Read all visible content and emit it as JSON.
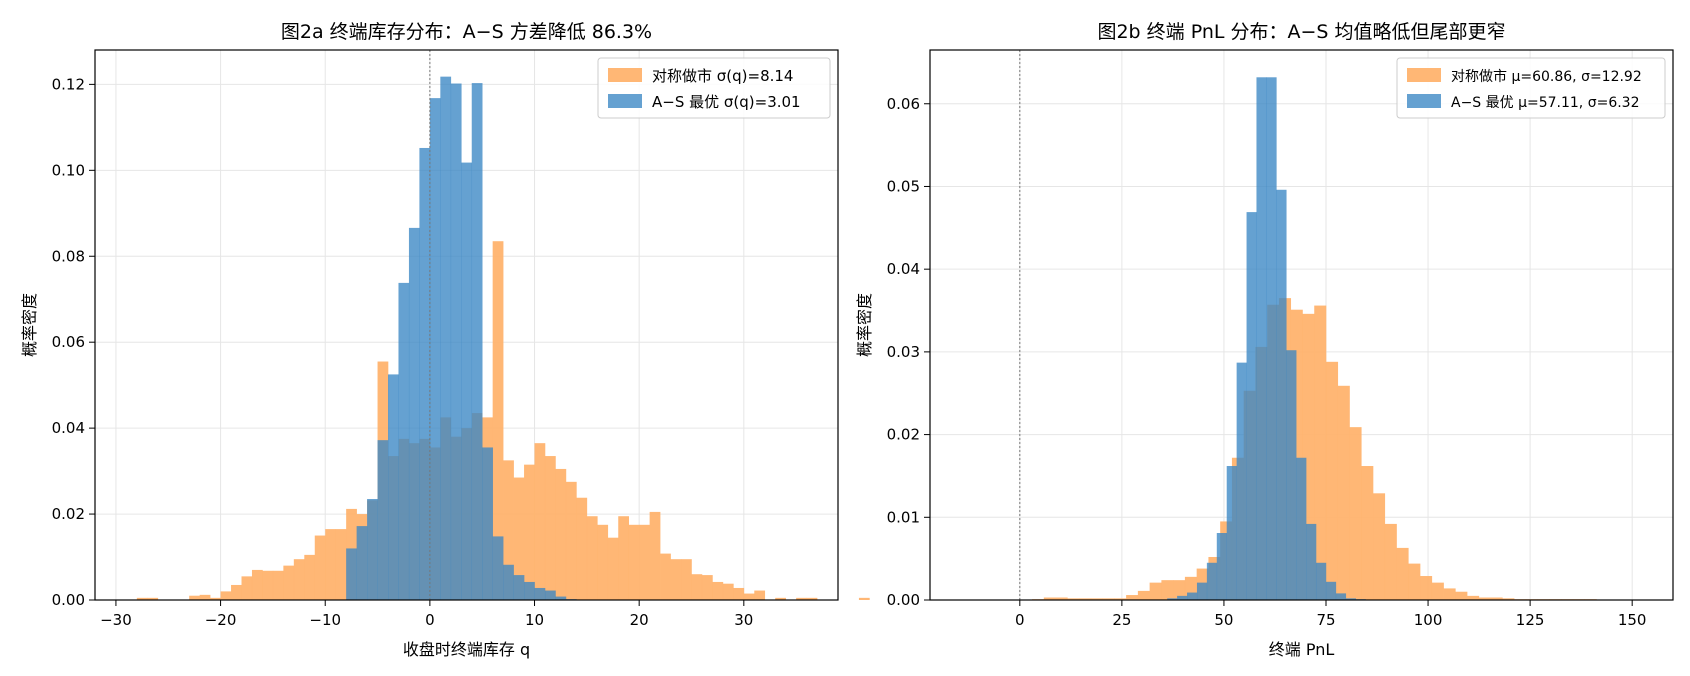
{
  "chart_data": [
    {
      "type": "histogram",
      "title": "图2a  终端库存分布：A−S 方差降低 86.3%",
      "xlabel": "收盘时终端库存 q",
      "ylabel": "概率密度",
      "xlim": [
        -32,
        39
      ],
      "ylim": [
        0,
        0.128
      ],
      "xticks": [
        -30,
        -20,
        -10,
        0,
        10,
        20,
        30
      ],
      "xtick_labels": [
        "−30",
        "−20",
        "−10",
        "0",
        "10",
        "20",
        "30"
      ],
      "yticks": [
        0,
        0.02,
        0.04,
        0.06,
        0.08,
        0.1,
        0.12
      ],
      "ytick_labels": [
        "0.00",
        "0.02",
        "0.04",
        "0.06",
        "0.08",
        "0.10",
        "0.12"
      ],
      "grid": true,
      "legend_position": "top-right",
      "vline_x": 0,
      "series": [
        {
          "name": "对称做市  σ(q)=8.14",
          "color": "#ffb36e",
          "bin_start": -28,
          "bin_width": 1,
          "values": [
            0.0005,
            0.0005,
            0.0,
            0.0,
            0.0,
            0.001,
            0.0012,
            0.0005,
            0.002,
            0.0035,
            0.0055,
            0.007,
            0.0068,
            0.0068,
            0.008,
            0.0095,
            0.0105,
            0.015,
            0.0165,
            0.0165,
            0.0212,
            0.02,
            0.0232,
            0.0555,
            0.0335,
            0.0375,
            0.0365,
            0.0375,
            0.0355,
            0.0425,
            0.038,
            0.04,
            0.0435,
            0.0425,
            0.0835,
            0.0325,
            0.0285,
            0.0315,
            0.0365,
            0.0335,
            0.0305,
            0.0275,
            0.0238,
            0.0195,
            0.0175,
            0.0145,
            0.0195,
            0.0175,
            0.0175,
            0.0205,
            0.0108,
            0.0095,
            0.0095,
            0.006,
            0.0058,
            0.0042,
            0.0038,
            0.0028,
            0.0015,
            0.0022,
            0.0,
            0.0005,
            0.0,
            0.0005,
            0.0005,
            0.0,
            0.0,
            0.0,
            0.0,
            0.0005
          ]
        },
        {
          "name": "A−S 最优  σ(q)=3.01",
          "color": "#3a87c4",
          "bin_start": -8,
          "bin_width": 1,
          "values": [
            0.012,
            0.0172,
            0.0235,
            0.0372,
            0.0525,
            0.0738,
            0.0866,
            0.1052,
            0.1168,
            0.1218,
            0.1202,
            0.1018,
            0.1203,
            0.0355,
            0.0148,
            0.0082,
            0.0058,
            0.0042,
            0.0028,
            0.0022,
            0.0008,
            0.0002
          ]
        }
      ]
    },
    {
      "type": "histogram",
      "title": "图2b  终端 PnL 分布：A−S 均值略低但尾部更窄",
      "xlabel": "终端 PnL",
      "ylabel": "概率密度",
      "xlim": [
        -22,
        160
      ],
      "ylim": [
        0,
        0.0665
      ],
      "xticks": [
        0,
        25,
        50,
        75,
        100,
        125,
        150
      ],
      "xtick_labels": [
        "0",
        "25",
        "50",
        "75",
        "100",
        "125",
        "150"
      ],
      "yticks": [
        0,
        0.01,
        0.02,
        0.03,
        0.04,
        0.05,
        0.06
      ],
      "ytick_labels": [
        "0.00",
        "0.01",
        "0.02",
        "0.03",
        "0.04",
        "0.05",
        "0.06"
      ],
      "grid": true,
      "legend_position": "top-right",
      "vline_x": 0,
      "series": [
        {
          "name": "对称做市  μ=60.86, σ=12.92",
          "color": "#ffb36e",
          "bin_start": 3,
          "bin_width": 2.88,
          "values": [
            0.0001,
            0.0003,
            0.0003,
            0.0002,
            0.0002,
            0.0002,
            0.0002,
            0.0002,
            0.0006,
            0.0011,
            0.0021,
            0.0024,
            0.0024,
            0.0028,
            0.0038,
            0.0052,
            0.0095,
            0.0172,
            0.0253,
            0.0306,
            0.0357,
            0.0365,
            0.0351,
            0.0346,
            0.0356,
            0.0288,
            0.0259,
            0.0209,
            0.0162,
            0.0129,
            0.0092,
            0.0063,
            0.0044,
            0.0029,
            0.0021,
            0.0014,
            0.001,
            0.0005,
            0.0003,
            0.0003,
            0.0002,
            0.0001,
            0.0001,
            0.0001,
            0.0001,
            0.0001,
            0.0001,
            0.0001,
            0.0
          ]
        },
        {
          "name": "A−S 最优  μ=57.11, σ=6.32",
          "color": "#3a87c4",
          "bin_start": 36.1,
          "bin_width": 2.43,
          "values": [
            0.0002,
            0.0005,
            0.0009,
            0.0021,
            0.0045,
            0.0081,
            0.0162,
            0.0287,
            0.0469,
            0.0632,
            0.0632,
            0.0496,
            0.0302,
            0.0172,
            0.0092,
            0.0045,
            0.0022,
            0.0008,
            0.0002,
            0.0001
          ]
        }
      ]
    }
  ]
}
